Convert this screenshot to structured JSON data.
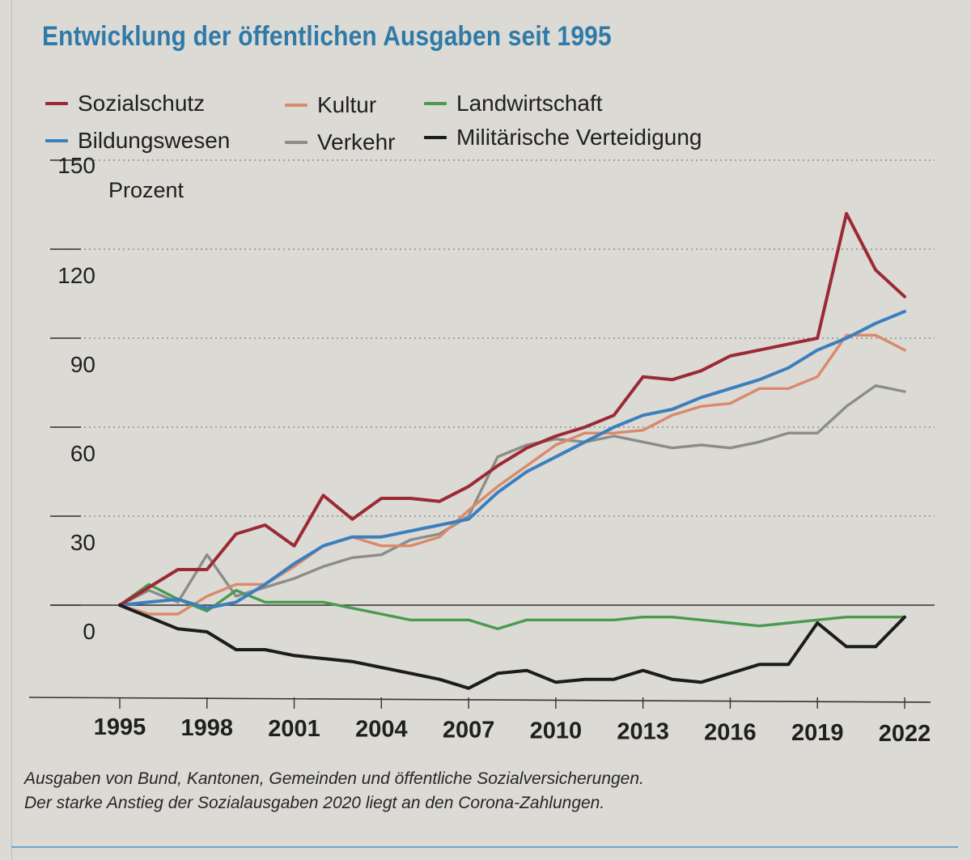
{
  "title": "Entwicklung der öffentlichen Ausgaben seit 1995",
  "legend": [
    {
      "label": "Sozialschutz",
      "color": "#9b2a35"
    },
    {
      "label": "Kultur",
      "color": "#d98a6c"
    },
    {
      "label": "Landwirtschaft",
      "color": "#4a9a4f"
    },
    {
      "label": "Bildungswesen",
      "color": "#3b7fbd"
    },
    {
      "label": "Verkehr",
      "color": "#8c8c88"
    },
    {
      "label": "Militärische Verteidigung",
      "color": "#1c1c1c"
    }
  ],
  "caption": {
    "line1": "Ausgaben von Bund, Kantonen, Gemeinden und öffentliche Sozialversicherungen.",
    "line2": "Der starke Anstieg der Sozialausgaben 2020 liegt an den Corona-Zahlungen."
  },
  "chart_data": {
    "type": "line",
    "title": "Entwicklung der öffentlichen Ausgaben seit 1995",
    "ylabel": "Prozent",
    "xlabel": "",
    "ylim": [
      -30,
      150
    ],
    "yticks": [
      0,
      30,
      60,
      90,
      120,
      150
    ],
    "ytick_labels": [
      "0",
      "30",
      "60",
      "90",
      "120",
      "150"
    ],
    "xticks": [
      1995,
      1998,
      2001,
      2004,
      2007,
      2010,
      2013,
      2016,
      2019,
      2022
    ],
    "xtick_labels": [
      "1995",
      "1998",
      "2001",
      "2004",
      "2007",
      "2010",
      "2013",
      "2016",
      "2019",
      "2022"
    ],
    "x": [
      1995,
      1996,
      1997,
      1998,
      1999,
      2000,
      2001,
      2002,
      2003,
      2004,
      2005,
      2006,
      2007,
      2008,
      2009,
      2010,
      2011,
      2012,
      2013,
      2014,
      2015,
      2016,
      2017,
      2018,
      2019,
      2020,
      2021,
      2022
    ],
    "series": [
      {
        "name": "Sozialschutz",
        "color": "#9b2a35",
        "values": [
          0,
          6,
          12,
          12,
          24,
          27,
          20,
          37,
          29,
          36,
          36,
          35,
          40,
          47,
          53,
          57,
          60,
          64,
          77,
          76,
          79,
          84,
          86,
          88,
          90,
          132,
          113,
          104
        ]
      },
      {
        "name": "Kultur",
        "color": "#d98a6c",
        "values": [
          0,
          -3,
          -3,
          3,
          7,
          7,
          13,
          20,
          23,
          20,
          20,
          23,
          32,
          40,
          47,
          54,
          58,
          58,
          59,
          64,
          67,
          68,
          73,
          73,
          77,
          91,
          91,
          86
        ]
      },
      {
        "name": "Landwirtschaft",
        "color": "#4a9a4f",
        "values": [
          0,
          7,
          2,
          -2,
          5,
          1,
          1,
          1,
          -1,
          -3,
          -5,
          -5,
          -5,
          -8,
          -5,
          -5,
          -5,
          -5,
          -4,
          -4,
          -5,
          -6,
          -7,
          -6,
          -5,
          -4,
          -4,
          -4
        ]
      },
      {
        "name": "Bildungswesen",
        "color": "#3b7fbd",
        "values": [
          0,
          1,
          2,
          -1,
          1,
          7,
          14,
          20,
          23,
          23,
          25,
          27,
          29,
          38,
          45,
          50,
          55,
          60,
          64,
          66,
          70,
          73,
          76,
          80,
          86,
          90,
          95,
          99
        ]
      },
      {
        "name": "Verkehr",
        "color": "#8c8c88",
        "values": [
          0,
          5,
          1,
          17,
          3,
          6,
          9,
          13,
          16,
          17,
          22,
          24,
          30,
          50,
          54,
          56,
          55,
          57,
          55,
          53,
          54,
          53,
          55,
          58,
          58,
          67,
          74,
          72
        ]
      },
      {
        "name": "Militärische Verteidigung",
        "color": "#1c1c1c",
        "values": [
          0,
          -4,
          -8,
          -9,
          -15,
          -15,
          -17,
          -18,
          -19,
          -21,
          -23,
          -25,
          -28,
          -23,
          -22,
          -26,
          -25,
          -25,
          -22,
          -25,
          -26,
          -23,
          -20,
          -20,
          -6,
          -14,
          -14,
          -4
        ]
      }
    ]
  }
}
